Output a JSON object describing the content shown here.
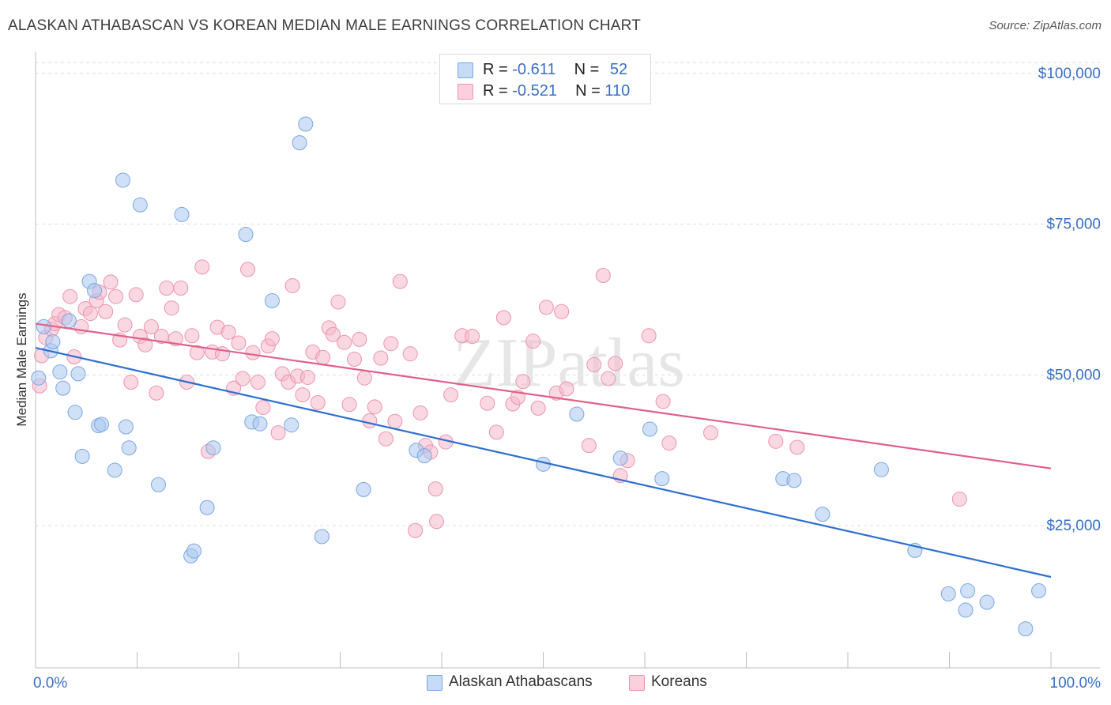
{
  "title": "ALASKAN ATHABASCAN VS KOREAN MEDIAN MALE EARNINGS CORRELATION CHART",
  "source": "Source: ZipAtlas.com",
  "watermark": "ZIPatlas",
  "legend": {
    "r_label": "R =",
    "n_label": "N =",
    "rows": [
      {
        "r": "-0.611",
        "n": "52",
        "color": "#a9c8f0"
      },
      {
        "r": "-0.521",
        "n": "110",
        "color": "#f6b8cb"
      }
    ]
  },
  "colors": {
    "blue_fill": "#a9c8f0",
    "blue_stroke": "#7aa6e0",
    "blue_line": "#2e6fd0",
    "pink_fill": "#f6b8cb",
    "pink_stroke": "#ec93b0",
    "pink_line": "#e0608a",
    "axis_text": "#3a6fc6",
    "grid": "#dddddd"
  },
  "chart_data": {
    "type": "scatter",
    "title": "ALASKAN ATHABASCAN VS KOREAN MEDIAN MALE EARNINGS CORRELATION CHART",
    "xlabel": "",
    "ylabel": "Median Male Earnings",
    "xlim": [
      0,
      100
    ],
    "ylim": [
      3000,
      103000
    ],
    "x_tick_labels": [
      "0.0%",
      "100.0%"
    ],
    "y_ticks": [
      25000,
      50000,
      75000,
      100000
    ],
    "y_tick_labels": [
      "$25,000",
      "$50,000",
      "$75,000",
      "$100,000"
    ],
    "grid": true,
    "legend_position": "bottom",
    "series": [
      {
        "name": "Alaskan Athabascans",
        "r": -0.611,
        "n": 52,
        "trend": [
          [
            0,
            54500
          ],
          [
            100,
            16500
          ]
        ],
        "points": [
          [
            0.3,
            49500
          ],
          [
            0.8,
            58000
          ],
          [
            1.5,
            54000
          ],
          [
            1.7,
            55500
          ],
          [
            2.4,
            50500
          ],
          [
            2.7,
            47800
          ],
          [
            3.3,
            59000
          ],
          [
            3.9,
            43800
          ],
          [
            4.2,
            50200
          ],
          [
            4.6,
            36500
          ],
          [
            5.3,
            65500
          ],
          [
            5.8,
            64000
          ],
          [
            6.2,
            41600
          ],
          [
            6.5,
            41800
          ],
          [
            7.8,
            34200
          ],
          [
            8.6,
            82300
          ],
          [
            8.9,
            41400
          ],
          [
            9.2,
            37900
          ],
          [
            10.3,
            78200
          ],
          [
            12.1,
            31800
          ],
          [
            14.4,
            76600
          ],
          [
            15.3,
            20000
          ],
          [
            15.6,
            20800
          ],
          [
            16.9,
            28000
          ],
          [
            17.5,
            37900
          ],
          [
            20.7,
            73300
          ],
          [
            21.3,
            42200
          ],
          [
            22.1,
            41900
          ],
          [
            23.3,
            62300
          ],
          [
            25.2,
            41700
          ],
          [
            26.0,
            88500
          ],
          [
            26.6,
            91600
          ],
          [
            28.2,
            23200
          ],
          [
            32.3,
            31000
          ],
          [
            37.5,
            37500
          ],
          [
            38.3,
            36600
          ],
          [
            50.0,
            35200
          ],
          [
            53.3,
            43500
          ],
          [
            57.6,
            36200
          ],
          [
            60.5,
            41000
          ],
          [
            61.7,
            32800
          ],
          [
            73.6,
            32800
          ],
          [
            74.7,
            32500
          ],
          [
            77.5,
            26900
          ],
          [
            83.3,
            34300
          ],
          [
            86.6,
            20900
          ],
          [
            89.9,
            13700
          ],
          [
            91.6,
            11000
          ],
          [
            91.8,
            14200
          ],
          [
            93.7,
            12300
          ],
          [
            97.5,
            7900
          ],
          [
            98.8,
            14200
          ]
        ]
      },
      {
        "name": "Koreans",
        "r": -0.521,
        "n": 110,
        "trend": [
          [
            0,
            58500
          ],
          [
            100,
            34500
          ]
        ],
        "points": [
          [
            0.4,
            48200
          ],
          [
            0.6,
            53200
          ],
          [
            1.0,
            56200
          ],
          [
            1.6,
            57600
          ],
          [
            1.9,
            58500
          ],
          [
            2.3,
            60000
          ],
          [
            2.9,
            59500
          ],
          [
            3.4,
            63000
          ],
          [
            3.8,
            53000
          ],
          [
            4.5,
            58000
          ],
          [
            4.9,
            61000
          ],
          [
            5.4,
            60200
          ],
          [
            6.0,
            62300
          ],
          [
            6.3,
            63700
          ],
          [
            6.9,
            60500
          ],
          [
            7.4,
            65400
          ],
          [
            7.9,
            63000
          ],
          [
            8.3,
            55800
          ],
          [
            8.8,
            58300
          ],
          [
            9.4,
            48800
          ],
          [
            9.9,
            63300
          ],
          [
            10.3,
            56400
          ],
          [
            10.8,
            55000
          ],
          [
            11.4,
            58000
          ],
          [
            11.9,
            47000
          ],
          [
            12.4,
            56400
          ],
          [
            12.9,
            64400
          ],
          [
            13.4,
            61100
          ],
          [
            13.8,
            56000
          ],
          [
            14.3,
            64400
          ],
          [
            14.9,
            48800
          ],
          [
            15.4,
            56500
          ],
          [
            15.9,
            53700
          ],
          [
            16.4,
            67900
          ],
          [
            17.0,
            37300
          ],
          [
            17.4,
            53800
          ],
          [
            17.9,
            57900
          ],
          [
            18.4,
            53500
          ],
          [
            19.0,
            57100
          ],
          [
            19.5,
            47800
          ],
          [
            20.0,
            55300
          ],
          [
            20.4,
            49400
          ],
          [
            20.9,
            67500
          ],
          [
            21.4,
            53700
          ],
          [
            21.9,
            48800
          ],
          [
            22.4,
            44600
          ],
          [
            22.9,
            54800
          ],
          [
            23.3,
            56000
          ],
          [
            23.9,
            40400
          ],
          [
            24.3,
            50200
          ],
          [
            24.9,
            48800
          ],
          [
            25.3,
            64800
          ],
          [
            25.8,
            49800
          ],
          [
            26.3,
            46700
          ],
          [
            26.8,
            49600
          ],
          [
            27.3,
            53800
          ],
          [
            27.8,
            45400
          ],
          [
            28.3,
            52900
          ],
          [
            28.9,
            57800
          ],
          [
            29.3,
            56700
          ],
          [
            29.8,
            62100
          ],
          [
            30.4,
            55400
          ],
          [
            30.9,
            45100
          ],
          [
            31.4,
            52600
          ],
          [
            31.9,
            55900
          ],
          [
            32.4,
            49500
          ],
          [
            32.9,
            42400
          ],
          [
            33.4,
            44700
          ],
          [
            34.0,
            52800
          ],
          [
            34.5,
            39400
          ],
          [
            35.0,
            55200
          ],
          [
            35.4,
            42300
          ],
          [
            35.9,
            65500
          ],
          [
            36.9,
            53500
          ],
          [
            37.4,
            24200
          ],
          [
            37.9,
            43700
          ],
          [
            38.4,
            38300
          ],
          [
            38.9,
            37200
          ],
          [
            39.4,
            31100
          ],
          [
            39.5,
            25700
          ],
          [
            40.4,
            38900
          ],
          [
            40.9,
            46700
          ],
          [
            42.0,
            56500
          ],
          [
            43.0,
            56400
          ],
          [
            44.5,
            45300
          ],
          [
            45.4,
            40500
          ],
          [
            46.1,
            59500
          ],
          [
            47.0,
            45200
          ],
          [
            47.5,
            46300
          ],
          [
            48.0,
            48900
          ],
          [
            49.0,
            55600
          ],
          [
            49.5,
            44500
          ],
          [
            50.3,
            61200
          ],
          [
            51.3,
            47000
          ],
          [
            51.8,
            60500
          ],
          [
            52.3,
            47700
          ],
          [
            54.5,
            38300
          ],
          [
            55.0,
            51700
          ],
          [
            55.9,
            66500
          ],
          [
            56.4,
            49400
          ],
          [
            57.1,
            51900
          ],
          [
            57.6,
            33300
          ],
          [
            58.3,
            35800
          ],
          [
            60.4,
            56500
          ],
          [
            61.8,
            45600
          ],
          [
            62.4,
            38700
          ],
          [
            66.5,
            40400
          ],
          [
            72.9,
            39000
          ],
          [
            75.0,
            38000
          ],
          [
            91.0,
            29400
          ]
        ]
      }
    ]
  }
}
